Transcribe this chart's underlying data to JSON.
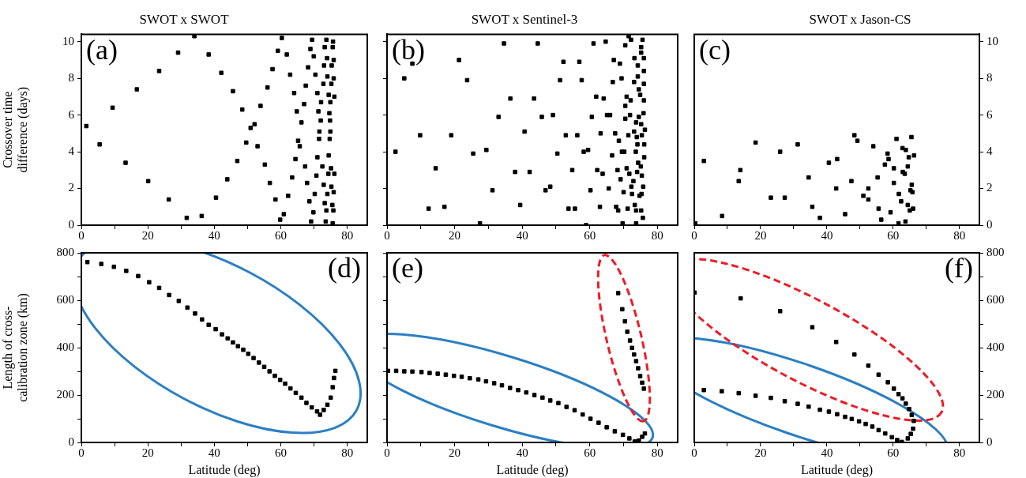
{
  "chart_data": [
    {
      "type": "scatter",
      "title": "SWOT x SWOT",
      "ylabel": "Crossover time difference (days)",
      "annotations": [
        "(a)"
      ],
      "marker": "square",
      "xlim": [
        0,
        86
      ],
      "xticks": [
        0,
        {
          "value": 10,
          "label": null
        },
        20,
        {
          "value": 30,
          "label": null
        },
        40,
        {
          "value": 50,
          "label": null
        },
        60,
        {
          "value": 70,
          "label": null
        },
        80
      ],
      "ylim": [
        0,
        10.4
      ],
      "yticks": [
        0,
        2,
        4,
        6,
        8,
        10
      ],
      "series": [
        {
          "color": "#000000",
          "x": [
            1.5,
            5.5,
            9.4,
            13.3,
            16.7,
            20.1,
            23.4,
            26.3,
            29.1,
            31.7,
            34.0,
            36.2,
            38.3,
            40.5,
            42.1,
            43.9,
            45.6,
            46.9,
            48.4,
            49.6,
            50.9,
            52.1,
            53.0,
            53.9,
            55.2,
            56.0,
            56.7,
            57.5,
            58.4,
            59.1,
            59.8,
            60.9,
            60.3,
            61.8,
            62.2,
            62.8,
            63.4,
            64.0,
            64.4,
            64.8,
            65.2,
            65.7,
            66.2,
            67.0,
            67.3,
            67.5,
            67.9,
            68.2,
            68.6,
            68.9,
            69.1,
            69.4,
            69.8,
            69.9,
            70.2,
            70.4,
            70.7,
            71.0,
            71.0,
            71.3,
            71.5,
            71.6,
            72.0,
            72.1,
            72.5,
            72.8,
            72.9,
            73.0,
            73.2,
            73.2,
            73.5,
            73.7,
            73.7,
            73.9,
            74.0,
            74.0,
            74.3,
            74.4,
            74.4,
            74.6,
            74.7,
            74.9,
            74.8,
            74.9,
            75.1,
            75.2,
            75.2,
            75.3,
            75.5,
            75.6,
            75.6,
            75.7,
            75.8,
            75.9,
            75.9,
            75.9,
            76.1,
            76.1
          ],
          "values": [
            5.4,
            4.4,
            6.4,
            3.4,
            7.4,
            2.4,
            8.4,
            1.4,
            9.4,
            0.4,
            10.3,
            0.5,
            9.3,
            1.5,
            8.3,
            2.5,
            7.3,
            3.5,
            6.3,
            4.5,
            5.3,
            5.5,
            4.3,
            6.5,
            3.3,
            7.5,
            2.3,
            8.5,
            1.4,
            9.5,
            0.3,
            0.6,
            10.2,
            9.3,
            1.6,
            8.2,
            2.6,
            7.2,
            3.6,
            6.2,
            4.6,
            4.3,
            5.6,
            6.6,
            3.2,
            7.6,
            2.3,
            8.6,
            1.3,
            9.6,
            0.2,
            10.1,
            0.7,
            9.2,
            1.7,
            8.2,
            2.7,
            7.2,
            3.7,
            6.2,
            4.7,
            5.1,
            5.7,
            6.7,
            3.2,
            7.7,
            2.2,
            8.7,
            1.2,
            9.7,
            0.2,
            10.1,
            0.8,
            9.1,
            1.7,
            8.1,
            2.8,
            7.1,
            3.8,
            6.1,
            4.7,
            5.1,
            5.7,
            6.7,
            3.1,
            7.7,
            2.1,
            8.7,
            1.1,
            9.7,
            0.1,
            10.0,
            0.8,
            9.0,
            1.8,
            8.0,
            2.8,
            7.0
          ]
        }
      ]
    },
    {
      "type": "scatter",
      "title": "SWOT x Sentinel-3",
      "annotations": [
        "(b)"
      ],
      "marker": "square",
      "tick_labels": "x",
      "xlim": [
        0,
        86
      ],
      "xticks": [
        0,
        {
          "value": 10,
          "label": null
        },
        20,
        {
          "value": 30,
          "label": null
        },
        40,
        {
          "value": 50,
          "label": null
        },
        60,
        {
          "value": 70,
          "label": null
        },
        80
      ],
      "ylim": [
        0,
        10.4
      ],
      "yticks": [
        0,
        2,
        4,
        6,
        8,
        10
      ],
      "series": [
        {
          "color": "#000000",
          "x": [
            2.5,
            5.1,
            7.5,
            9.8,
            12.3,
            14.4,
            17.0,
            19.0,
            21.3,
            23.7,
            25.5,
            27.5,
            29.4,
            31.2,
            33.0,
            34.6,
            36.5,
            37.9,
            39.4,
            40.7,
            42.2,
            43.5,
            44.6,
            45.8,
            46.9,
            48.3,
            49.1,
            50.4,
            51.2,
            52.2,
            52.9,
            53.7,
            54.8,
            55.6,
            56.3,
            56.9,
            57.6,
            58.2,
            58.9,
            59.5,
            60.2,
            60.6,
            61.1,
            61.9,
            62.2,
            63.0,
            63.2,
            63.8,
            64.1,
            64.7,
            65.1,
            65.6,
            66.0,
            66.6,
            66.8,
            67.1,
            67.5,
            67.8,
            68.2,
            68.4,
            68.6,
            68.9,
            69.1,
            69.4,
            69.5,
            69.7,
            70.0,
            70.2,
            70.5,
            70.5,
            70.5,
            70.9,
            70.9,
            71.2,
            71.4,
            71.5,
            71.7,
            71.9,
            72.1,
            72.2,
            72.3,
            72.5,
            72.9,
            73.1,
            73.1,
            73.2,
            73.3,
            73.6,
            73.7,
            73.7,
            73.7,
            73.9,
            74.0,
            74.1,
            74.2,
            74.2,
            74.3,
            74.5,
            74.5,
            74.7,
            74.9,
            75.1,
            75.2,
            75.2,
            75.2,
            75.2,
            75.3,
            75.4,
            75.4,
            75.6,
            75.7,
            75.8,
            75.9,
            76.0,
            76.0,
            76.0,
            76.0,
            76.1,
            76.1,
            76.3
          ],
          "values": [
            4.0,
            8.0,
            8.8,
            4.9,
            0.9,
            3.1,
            1.0,
            4.9,
            9.0,
            7.9,
            3.9,
            0.1,
            4.1,
            1.9,
            5.9,
            9.9,
            6.9,
            2.9,
            1.1,
            5.1,
            2.9,
            6.9,
            9.9,
            5.9,
            1.9,
            2.1,
            6.0,
            3.9,
            7.9,
            8.9,
            4.9,
            0.9,
            3.0,
            0.9,
            4.9,
            8.9,
            7.9,
            4.0,
            0.0,
            4.1,
            1.9,
            5.9,
            9.9,
            7.0,
            3.0,
            1.0,
            5.0,
            2.8,
            6.9,
            10.0,
            6.0,
            2.0,
            6.0,
            3.8,
            7.8,
            9.0,
            5.0,
            1.0,
            3.0,
            0.8,
            4.6,
            8.8,
            2.5,
            8.0,
            4.0,
            0.1,
            1.8,
            4.0,
            5.8,
            9.8,
            6.5,
            7.0,
            3.1,
            0.9,
            4.9,
            10.3,
            2.8,
            6.0,
            6.8,
            10.1,
            2.1,
            1.7,
            2.4,
            5.1,
            7.8,
            9.1,
            1.1,
            4.0,
            0.1,
            5.6,
            0.8,
            4.8,
            2.9,
            4.4,
            8.7,
            8.1,
            3.4,
            7.4,
            5.9,
            1.6,
            7.1,
            3.2,
            5.5,
            9.4,
            9.7,
            0.8,
            1.7,
            4.9,
            2.7,
            10.1,
            0.4,
            2.1,
            6.1,
            7.7,
            6.8,
            9.1,
            8.4,
            3.7,
            4.4,
            5.2
          ]
        }
      ]
    },
    {
      "type": "scatter",
      "title": "SWOT x Jason-CS",
      "annotations": [
        "(c)"
      ],
      "marker": "square",
      "xlim": [
        0,
        86
      ],
      "xticks": [
        0,
        {
          "value": 10,
          "label": null
        },
        20,
        {
          "value": 30,
          "label": null
        },
        40,
        {
          "value": 50,
          "label": null
        },
        60,
        {
          "value": 70,
          "label": null
        },
        80
      ],
      "y2lim": [
        0,
        10.4
      ],
      "y2ticks": [
        0,
        2,
        4,
        6,
        8,
        10
      ],
      "series": [
        {
          "axis": "y2",
          "color": "#000000",
          "x": [
            0.3,
            2.9,
            8.4,
            13.4,
            13.9,
            18.5,
            23.1,
            25.9,
            27.3,
            31.2,
            34.5,
            35.6,
            37.9,
            40.6,
            42.8,
            43.1,
            45.5,
            47.4,
            48.3,
            49.2,
            51.0,
            52.5,
            52.5,
            54.0,
            55.3,
            55.6,
            56.4,
            57.5,
            58.3,
            58.6,
            59.2,
            60.2,
            60.2,
            61.0,
            61.6,
            61.7,
            62.4,
            62.8,
            62.9,
            63.5,
            63.7,
            63.8,
            64.4,
            64.4,
            64.7,
            65.0,
            65.2,
            65.5,
            65.6,
            65.8,
            66.0,
            66.3
          ],
          "values": [
            0.1,
            3.5,
            0.5,
            2.4,
            3.0,
            4.5,
            1.5,
            4.0,
            1.5,
            4.4,
            2.6,
            1.0,
            0.4,
            3.4,
            2.0,
            3.6,
            0.6,
            2.4,
            4.9,
            4.6,
            1.6,
            1.4,
            2.0,
            4.3,
            2.6,
            0.9,
            0.3,
            3.3,
            3.9,
            3.6,
            0.7,
            2.3,
            3.1,
            4.7,
            0.1,
            1.7,
            1.3,
            4.2,
            2.9,
            2.8,
            0.2,
            4.1,
            3.2,
            1.1,
            3.7,
            0.8,
            1.9,
            4.8,
            2.2,
            1.8,
            0.9,
            3.8
          ]
        }
      ]
    },
    {
      "type": "scatter",
      "xlabel": "Latitude (deg)",
      "ylabel": "Length of cross-calibration zone (km)",
      "annotations": [
        "(d)"
      ],
      "marker": "square",
      "xlim": [
        0,
        86
      ],
      "xticks": [
        0,
        {
          "value": 10,
          "label": null
        },
        20,
        {
          "value": 30,
          "label": null
        },
        40,
        {
          "value": 50,
          "label": null
        },
        60,
        {
          "value": 70,
          "label": null
        },
        80
      ],
      "ylim": [
        0,
        800
      ],
      "yticks": [
        0,
        {
          "value": 100,
          "label": null
        },
        200,
        {
          "value": 300,
          "label": null
        },
        400,
        {
          "value": 500,
          "label": null
        },
        600,
        {
          "value": 700,
          "label": null
        },
        800
      ],
      "series": [
        {
          "color": "#000000",
          "x": [
            1.8,
            6.0,
            9.8,
            13.5,
            17.1,
            20.4,
            23.4,
            26.4,
            29.3,
            31.9,
            34.2,
            36.3,
            38.3,
            40.4,
            42.3,
            44.0,
            45.6,
            47.1,
            48.7,
            50.2,
            51.8,
            53.4,
            55.0,
            56.6,
            58.2,
            59.8,
            61.3,
            62.9,
            64.5,
            66.2,
            67.7,
            69.3,
            70.9,
            71.8,
            72.9,
            74.0,
            75.0,
            75.6,
            76.0,
            76.4
          ],
          "values": [
            761,
            753,
            741,
            724,
            702,
            676,
            652,
            622,
            597,
            569,
            544,
            519,
            496,
            478,
            456,
            439,
            422,
            406,
            391,
            374,
            356,
            337,
            319,
            300,
            281,
            264,
            248,
            228,
            209,
            189,
            167,
            148,
            131,
            117,
            137,
            159,
            189,
            233,
            272,
            302
          ]
        }
      ]
    },
    {
      "type": "scatter",
      "xlabel": "Latitude (deg)",
      "annotations": [
        "(e)"
      ],
      "marker": "square",
      "tick_labels": "x",
      "xlim": [
        0,
        86
      ],
      "xticks": [
        0,
        {
          "value": 10,
          "label": null
        },
        20,
        {
          "value": 30,
          "label": null
        },
        40,
        {
          "value": 50,
          "label": null
        },
        60,
        {
          "value": 70,
          "label": null
        },
        80
      ],
      "ylim": [
        0,
        800
      ],
      "yticks": [
        0,
        {
          "value": 100,
          "label": null
        },
        200,
        {
          "value": 300,
          "label": null
        },
        400,
        {
          "value": 500,
          "label": null
        },
        600,
        {
          "value": 700,
          "label": null
        },
        800
      ],
      "series": [
        {
          "color": "#000000",
          "x": [
            0.3,
            2.7,
            5.1,
            7.5,
            10.2,
            12.6,
            15.0,
            17.4,
            19.8,
            22.1,
            24.5,
            27.0,
            29.3,
            31.7,
            34.0,
            36.4,
            38.8,
            41.2,
            43.6,
            46.0,
            48.3,
            50.7,
            53.1,
            55.5,
            57.9,
            60.2,
            62.6,
            65.0,
            67.4,
            69.8,
            71.7,
            73.3,
            74.5,
            75.5,
            76.3,
            68.4,
            69.6,
            70.4,
            71.1,
            71.9,
            72.5,
            73.1,
            73.7,
            74.3,
            74.9,
            75.5,
            76.0
          ],
          "values": [
            302,
            302,
            300,
            299,
            297,
            293,
            290,
            286,
            281,
            277,
            271,
            266,
            258,
            250,
            241,
            230,
            221,
            211,
            200,
            189,
            177,
            166,
            150,
            136,
            118,
            100,
            83,
            64,
            47,
            32,
            17,
            4,
            8,
            24,
            38,
            630,
            562,
            511,
            467,
            430,
            399,
            371,
            343,
            313,
            280,
            252,
            227
          ]
        }
      ]
    },
    {
      "type": "scatter",
      "xlabel": "Latitude (deg)",
      "annotations": [
        "(f)"
      ],
      "marker": "square",
      "xlim": [
        0,
        86
      ],
      "xticks": [
        0,
        {
          "value": 10,
          "label": null
        },
        20,
        {
          "value": 30,
          "label": null
        },
        40,
        {
          "value": 50,
          "label": null
        },
        60,
        {
          "value": 70,
          "label": null
        },
        80
      ],
      "y2lim": [
        0,
        800
      ],
      "y2ticks": [
        0,
        {
          "value": 100,
          "label": null
        },
        200,
        {
          "value": 300,
          "label": null
        },
        400,
        {
          "value": 500,
          "label": null
        },
        600,
        {
          "value": 700,
          "label": null
        },
        800
      ],
      "series": [
        {
          "axis": "y2",
          "color": "#000000",
          "x": [
            0.1,
            14.0,
            25.9,
            35.6,
            42.8,
            48.3,
            52.5,
            55.6,
            58.4,
            60.2,
            61.6,
            62.8,
            63.8,
            64.8,
            65.6,
            66.2,
            66.0,
            65.3,
            64.4,
            2.9,
            8.3,
            13.4,
            18.5,
            23.1,
            27.3,
            31.2,
            34.5,
            37.9,
            40.6,
            43.1,
            45.5,
            47.5,
            49.7,
            51.7,
            53.7,
            55.6,
            57.6,
            59.6,
            61.2,
            62.6
          ],
          "values": [
            632,
            608,
            554,
            486,
            424,
            371,
            324,
            286,
            254,
            227,
            204,
            186,
            164,
            141,
            116,
            91,
            58,
            36,
            17,
            221,
            216,
            208,
            197,
            188,
            174,
            163,
            151,
            138,
            130,
            119,
            108,
            99,
            89,
            78,
            67,
            52,
            38,
            22,
            10,
            2
          ]
        }
      ]
    }
  ]
}
